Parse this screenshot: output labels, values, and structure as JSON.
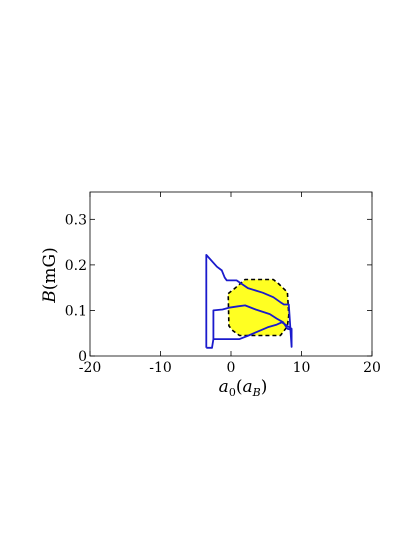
{
  "chart_data": {
    "type": "area",
    "xlabel": {
      "main": "a",
      "sub1": "0",
      "paren_open": "(",
      "inner": "a",
      "sub2": "B",
      "paren_close": ")"
    },
    "ylabel": {
      "main": "B",
      "units": "(mG)"
    },
    "xlim": [
      -20,
      20
    ],
    "ylim": [
      0,
      0.36
    ],
    "x_ticks": [
      -20,
      -10,
      0,
      10,
      20
    ],
    "x_tick_labels": [
      "-20",
      "-10",
      "0",
      "10",
      "20"
    ],
    "y_ticks": [
      0,
      0.1,
      0.2,
      0.3
    ],
    "y_tick_labels": [
      "0",
      "0.1",
      "0.2",
      "0.3"
    ],
    "grid": false,
    "legend": "none",
    "series": [
      {
        "kind": "filled-region",
        "fill": "#ffff22",
        "stroke": "#000000",
        "dashed": true,
        "points": [
          [
            -0.4,
            0.137
          ],
          [
            0.5,
            0.148
          ],
          [
            2,
            0.168
          ],
          [
            6,
            0.168
          ],
          [
            6.8,
            0.158
          ],
          [
            8,
            0.14
          ],
          [
            8.2,
            0.09
          ],
          [
            8,
            0.065
          ],
          [
            7,
            0.045
          ],
          [
            1.2,
            0.045
          ],
          [
            0.3,
            0.055
          ],
          [
            -0.3,
            0.066
          ],
          [
            -0.4,
            0.137
          ]
        ]
      },
      {
        "kind": "outline",
        "stroke": "#1a1acc",
        "dashed": false,
        "points": [
          [
            -3.5,
            0.018
          ],
          [
            -3.5,
            0.222
          ],
          [
            -2,
            0.196
          ],
          [
            -1.3,
            0.188
          ],
          [
            -0.9,
            0.172
          ],
          [
            -0.6,
            0.166
          ],
          [
            0.8,
            0.166
          ],
          [
            2.4,
            0.149
          ],
          [
            4.5,
            0.139
          ],
          [
            6,
            0.129
          ],
          [
            7,
            0.118
          ],
          [
            7.5,
            0.113
          ],
          [
            8.2,
            0.113
          ],
          [
            8.6,
            0.02
          ],
          [
            8.6,
            0.06
          ],
          [
            7.2,
            0.074
          ],
          [
            6.5,
            0.069
          ],
          [
            5.2,
            0.063
          ],
          [
            4,
            0.055
          ],
          [
            2.5,
            0.045
          ],
          [
            1.2,
            0.037
          ],
          [
            -2.5,
            0.037
          ],
          [
            -2.7,
            0.018
          ],
          [
            -3.5,
            0.018
          ]
        ]
      },
      {
        "kind": "outline",
        "stroke": "#1a1acc",
        "dashed": false,
        "points": [
          [
            -2.5,
            0.037
          ],
          [
            -2.5,
            0.1
          ],
          [
            -1.2,
            0.102
          ],
          [
            -0.3,
            0.106
          ],
          [
            1,
            0.109
          ],
          [
            2,
            0.111
          ],
          [
            3.5,
            0.102
          ],
          [
            5.5,
            0.092
          ],
          [
            6.5,
            0.082
          ],
          [
            7.4,
            0.074
          ],
          [
            8,
            0.06
          ],
          [
            8.5,
            0.058
          ]
        ]
      }
    ]
  }
}
